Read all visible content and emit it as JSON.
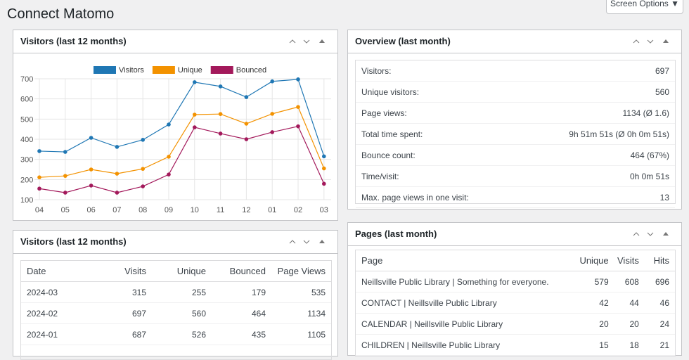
{
  "page": {
    "title": "Connect Matomo",
    "screen_options": "Screen Options"
  },
  "chart_data": {
    "type": "line",
    "title": "Visitors (last 12 months)",
    "categories": [
      "04",
      "05",
      "06",
      "07",
      "08",
      "09",
      "10",
      "11",
      "12",
      "01",
      "02",
      "03"
    ],
    "series": [
      {
        "name": "Visitors",
        "color": "#1f77b4",
        "values": [
          341,
          337,
          407,
          362,
          397,
          473,
          683,
          662,
          609,
          687,
          697,
          315
        ]
      },
      {
        "name": "Unique",
        "color": "#f39200",
        "values": [
          211,
          218,
          250,
          229,
          253,
          313,
          522,
          525,
          477,
          526,
          560,
          255
        ]
      },
      {
        "name": "Bounced",
        "color": "#a3195b",
        "values": [
          155,
          135,
          170,
          135,
          166,
          225,
          459,
          428,
          400,
          435,
          464,
          179
        ]
      }
    ],
    "ylim": [
      100,
      700
    ],
    "yticks": [
      100,
      200,
      300,
      400,
      500,
      600,
      700
    ],
    "grid": true
  },
  "overview": {
    "title": "Overview (last month)",
    "rows": [
      [
        "Visitors:",
        "697"
      ],
      [
        "Unique visitors:",
        "560"
      ],
      [
        "Page views:",
        "1134 (Ø 1.6)"
      ],
      [
        "Total time spent:",
        "9h 51m 51s (Ø 0h 0m 51s)"
      ],
      [
        "Bounce count:",
        "464 (67%)"
      ],
      [
        "Time/visit:",
        "0h 0m 51s"
      ],
      [
        "Max. page views in one visit:",
        "13"
      ]
    ]
  },
  "visitors_table": {
    "title": "Visitors (last 12 months)",
    "header": [
      "Date",
      "Visits",
      "Unique",
      "Bounced",
      "Page Views"
    ],
    "rows": [
      [
        "2024-03",
        "315",
        "255",
        "179",
        "535"
      ],
      [
        "2024-02",
        "697",
        "560",
        "464",
        "1134"
      ],
      [
        "2024-01",
        "687",
        "526",
        "435",
        "1105"
      ]
    ]
  },
  "pages_table": {
    "title": "Pages (last month)",
    "header": [
      "Page",
      "Unique",
      "Visits",
      "Hits"
    ],
    "rows": [
      [
        "Neillsville Public Library | Something for everyone.",
        "579",
        "608",
        "696"
      ],
      [
        "CONTACT | Neillsville Public Library",
        "42",
        "44",
        "46"
      ],
      [
        "CALENDAR | Neillsville Public Library",
        "20",
        "20",
        "24"
      ],
      [
        "CHILDREN | Neillsville Public Library",
        "15",
        "18",
        "21"
      ]
    ]
  }
}
